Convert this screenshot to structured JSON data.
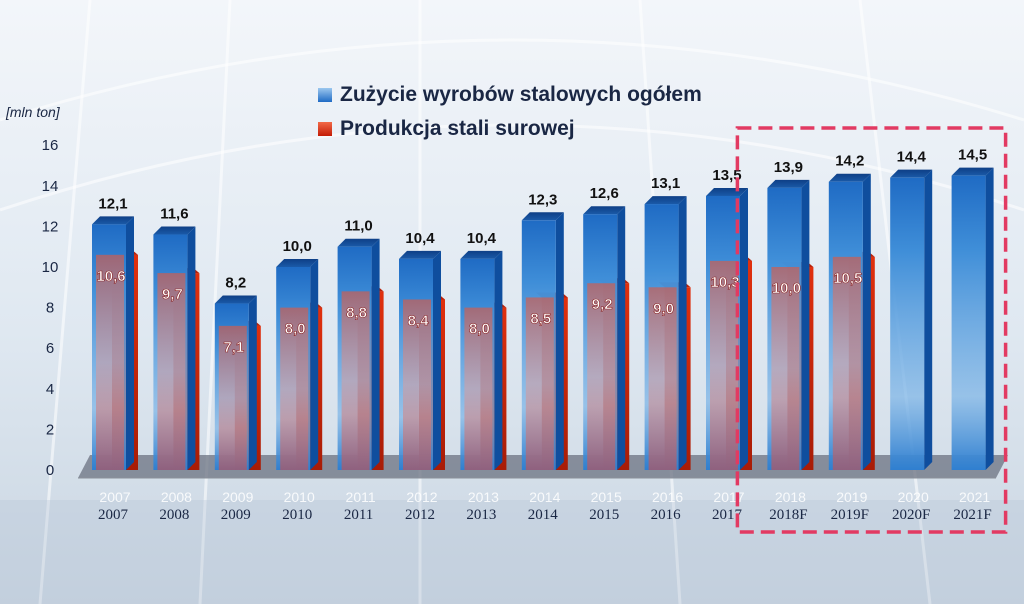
{
  "colors": {
    "consumption": "#2f7fd0",
    "production": "#d52b0e",
    "forecast_box": "#e23a62"
  },
  "chart_data": {
    "type": "bar",
    "unit_label": "[mln ton]",
    "categories": [
      "2007",
      "2008",
      "2009",
      "2010",
      "2011",
      "2012",
      "2013",
      "2014",
      "2015",
      "2016",
      "2017",
      "2018F",
      "2019F",
      "2020F",
      "2021F"
    ],
    "floor_labels": [
      "2007",
      "2008",
      "2009",
      "2010",
      "2011",
      "2012",
      "2013",
      "2014",
      "2015",
      "2016",
      "2017",
      "2018",
      "2019",
      "2020",
      "2021"
    ],
    "ylim": [
      0,
      16
    ],
    "yticks": [
      "0",
      "2",
      "4",
      "6",
      "8",
      "10",
      "12",
      "14",
      "16"
    ],
    "forecast_highlight": [
      "2018F",
      "2019F",
      "2020F",
      "2021F"
    ],
    "series": [
      {
        "name": "Zużycie wyrobów stalowych ogółem",
        "values": [
          12.1,
          11.6,
          8.2,
          10.0,
          11.0,
          10.4,
          10.4,
          12.3,
          12.6,
          13.1,
          13.5,
          13.9,
          14.2,
          14.4,
          14.5
        ],
        "labels": [
          "12,1",
          "11,6",
          "8,2",
          "10,0",
          "11,0",
          "10,4",
          "10,4",
          "12,3",
          "12,6",
          "13,1",
          "13,5",
          "13,9",
          "14,2",
          "14,4",
          "14,5"
        ]
      },
      {
        "name": "Produkcja stali surowej",
        "values": [
          10.6,
          9.7,
          7.1,
          8.0,
          8.8,
          8.4,
          8.0,
          8.5,
          9.2,
          9.0,
          10.3,
          10.0,
          10.5,
          null,
          null
        ],
        "labels": [
          "10,6",
          "9,7",
          "7,1",
          "8,0",
          "8,8",
          "8,4",
          "8,0",
          "8,5",
          "9,2",
          "9,0",
          "10,3",
          "10,0",
          "10,5",
          "",
          ""
        ]
      }
    ]
  }
}
